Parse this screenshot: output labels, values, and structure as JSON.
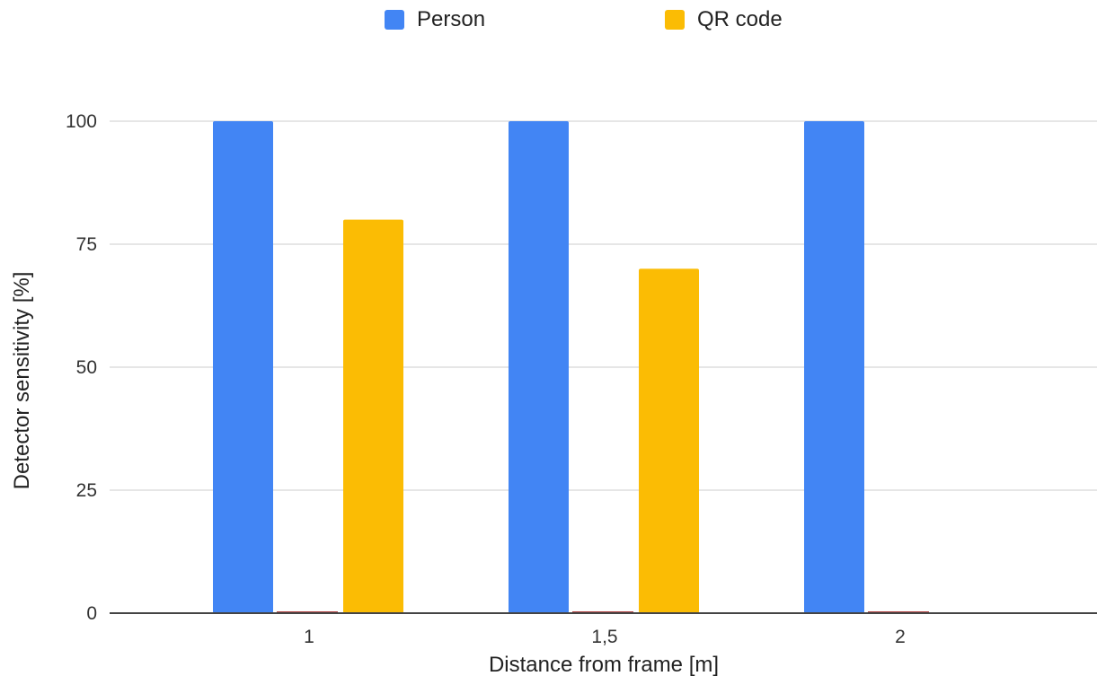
{
  "chart_data": {
    "type": "bar",
    "categories": [
      "1",
      "1,5",
      "2"
    ],
    "series": [
      {
        "name": "Person",
        "values": [
          100,
          100,
          100
        ],
        "color": "#4285f4"
      },
      {
        "name": "QR code",
        "values": [
          80,
          70,
          0
        ],
        "color": "#fbbc04"
      }
    ],
    "xlabel": "Distance from frame [m]",
    "ylabel": "Detector sensitivity [%]",
    "ylim": [
      0,
      100
    ],
    "yticks": [
      "0",
      "25",
      "50",
      "75",
      "100"
    ],
    "grid": true,
    "legend": "top-center"
  }
}
